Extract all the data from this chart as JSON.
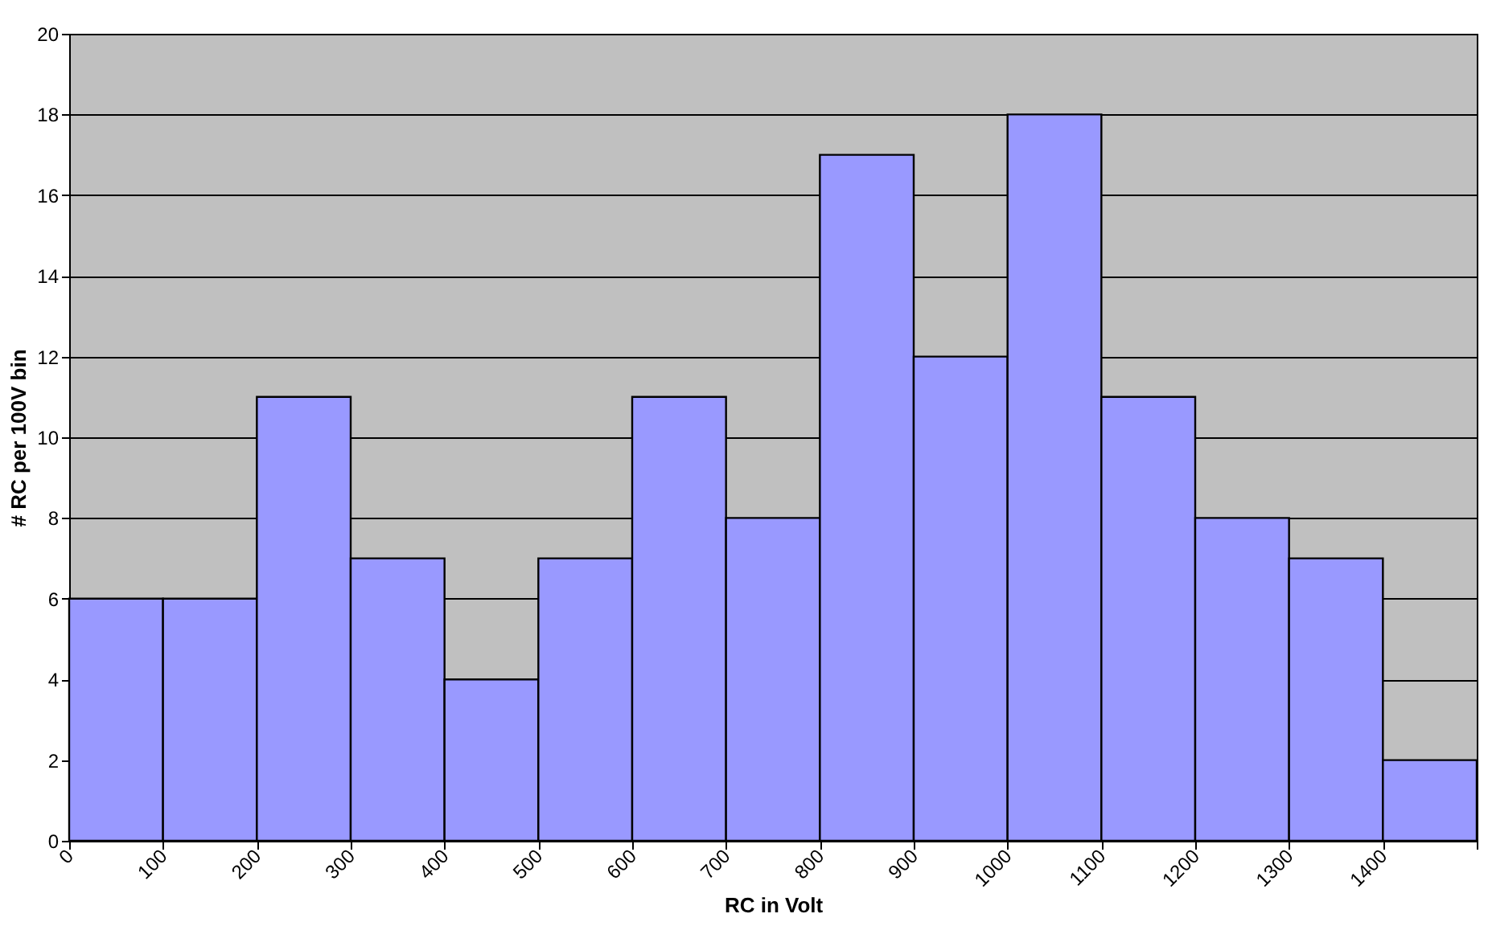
{
  "chart_data": {
    "type": "histogram",
    "xlabel": "RC in Volt",
    "ylabel": "# RC per 100V bin",
    "bins": [
      0,
      100,
      200,
      300,
      400,
      500,
      600,
      700,
      800,
      900,
      1000,
      1100,
      1200,
      1300,
      1400,
      1500
    ],
    "values": [
      6,
      6,
      11,
      7,
      4,
      7,
      11,
      8,
      17,
      12,
      18,
      11,
      8,
      7,
      2
    ],
    "color": "#9999ff",
    "xlim": [
      0,
      1500
    ],
    "xticks": [
      0,
      100,
      200,
      300,
      400,
      500,
      600,
      700,
      800,
      900,
      1000,
      1100,
      1200,
      1300,
      1400,
      {
        "value": 1500,
        "label": null
      }
    ],
    "ylim": [
      0,
      20
    ],
    "yticks": [
      0,
      2,
      4,
      6,
      8,
      10,
      12,
      14,
      16,
      18,
      20
    ],
    "grid": "y"
  }
}
